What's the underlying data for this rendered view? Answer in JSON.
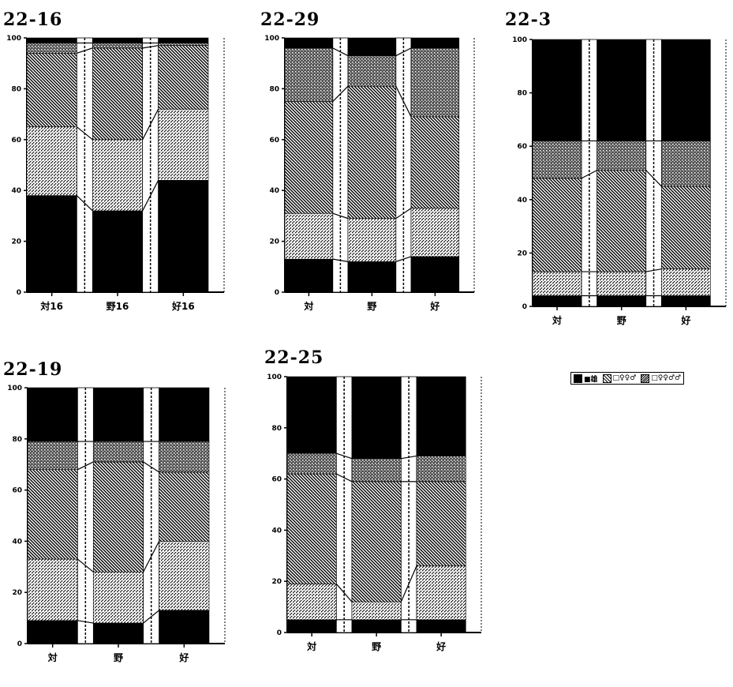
{
  "chart_data": [
    {
      "type": "bar",
      "stacked": true,
      "normalized": true,
      "title": "22-16",
      "categories": [
        "対16",
        "野16",
        "好16"
      ],
      "yticks": [
        "0",
        "20",
        "40",
        "60",
        "80",
        "100"
      ],
      "ylim": [
        0,
        100
      ],
      "series": [
        {
          "values": [
            38,
            32,
            44
          ]
        },
        {
          "values": [
            27,
            28,
            28
          ]
        },
        {
          "values": [
            29,
            36,
            25
          ]
        },
        {
          "values": [
            4,
            2,
            1
          ]
        },
        {
          "values": [
            2,
            2,
            2
          ]
        }
      ]
    },
    {
      "type": "bar",
      "stacked": true,
      "normalized": true,
      "title": "22-29",
      "categories": [
        "対",
        "野",
        "好"
      ],
      "yticks": [
        "0",
        "20",
        "40",
        "60",
        "80",
        "100"
      ],
      "ylim": [
        0,
        100
      ],
      "series": [
        {
          "values": [
            13,
            12,
            14
          ]
        },
        {
          "values": [
            18,
            17,
            19
          ]
        },
        {
          "values": [
            44,
            52,
            36
          ]
        },
        {
          "values": [
            21,
            12,
            27
          ]
        },
        {
          "values": [
            4,
            7,
            4
          ]
        }
      ]
    },
    {
      "type": "bar",
      "stacked": true,
      "normalized": true,
      "title": "22-3",
      "categories": [
        "対",
        "野",
        "好"
      ],
      "yticks": [
        "0",
        "20",
        "40",
        "60",
        "80",
        "100"
      ],
      "ylim": [
        0,
        100
      ],
      "series": [
        {
          "values": [
            4,
            4,
            4
          ]
        },
        {
          "values": [
            9,
            9,
            10
          ]
        },
        {
          "values": [
            35,
            38,
            31
          ]
        },
        {
          "values": [
            14,
            11,
            17
          ]
        },
        {
          "values": [
            38,
            38,
            38
          ]
        }
      ]
    },
    {
      "type": "bar",
      "stacked": true,
      "normalized": true,
      "title": "22-19",
      "categories": [
        "対",
        "野",
        "好"
      ],
      "yticks": [
        "0",
        "20",
        "40",
        "60",
        "80",
        "100"
      ],
      "ylim": [
        0,
        100
      ],
      "series": [
        {
          "values": [
            9,
            8,
            13
          ]
        },
        {
          "values": [
            24,
            20,
            27
          ]
        },
        {
          "values": [
            35,
            43,
            27
          ]
        },
        {
          "values": [
            11,
            8,
            12
          ]
        },
        {
          "values": [
            21,
            21,
            21
          ]
        }
      ]
    },
    {
      "type": "bar",
      "stacked": true,
      "normalized": true,
      "title": "22-25",
      "categories": [
        "対",
        "野",
        "好"
      ],
      "yticks": [
        "0",
        "20",
        "40",
        "60",
        "80",
        "100"
      ],
      "ylim": [
        0,
        100
      ],
      "series": [
        {
          "values": [
            5,
            5,
            5
          ]
        },
        {
          "values": [
            14,
            7,
            21
          ]
        },
        {
          "values": [
            43,
            47,
            33
          ]
        },
        {
          "values": [
            8,
            9,
            10
          ]
        },
        {
          "values": [
            30,
            32,
            31
          ]
        }
      ]
    }
  ],
  "legend": {
    "entries": [
      "■雄",
      "□♀♀♂",
      "□♀♀♂♂"
    ]
  },
  "colors": {
    "black": "#000000",
    "background": "#ffffff"
  }
}
